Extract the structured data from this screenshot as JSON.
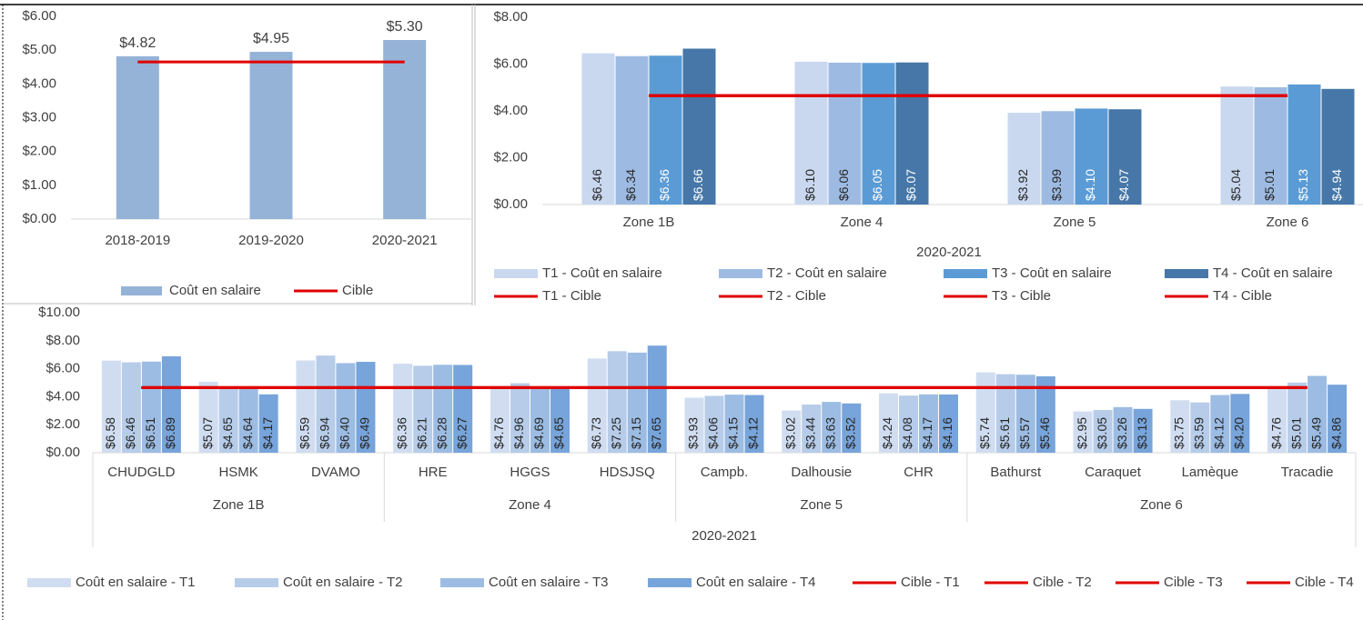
{
  "chart_data": [
    {
      "type": "bar",
      "categories": [
        "2018-2019",
        "2019-2020",
        "2020-2021"
      ],
      "series": [
        {
          "name": "Coût en salaire",
          "type": "bar",
          "color": "#95b3d7",
          "values": [
            4.82,
            4.95,
            5.3
          ],
          "value_labels": [
            "$4.82",
            "$4.95",
            "$5.30"
          ]
        },
        {
          "name": "Cible",
          "type": "line",
          "color": "#e00000",
          "values": [
            4.65,
            4.65,
            4.65
          ]
        }
      ],
      "ylim": [
        0,
        6
      ],
      "yticks": [
        {
          "value": 0,
          "label": "$0.00"
        },
        {
          "value": 1,
          "label": "$1.00"
        },
        {
          "value": 2,
          "label": "$2.00"
        },
        {
          "value": 3,
          "label": "$3.00"
        },
        {
          "value": 4,
          "label": "$4.00"
        },
        {
          "value": 5,
          "label": "$5.00"
        },
        {
          "value": 6,
          "label": "$6.00"
        }
      ],
      "grid": false,
      "legend": "bottom"
    },
    {
      "type": "bar",
      "xlabel": "2020-2021",
      "categories": [
        "Zone 1B",
        "Zone 4",
        "Zone 5",
        "Zone 6"
      ],
      "series": [
        {
          "name": "T1 -  Coût en salaire",
          "type": "bar",
          "color": "#c9d8ef",
          "values": [
            6.46,
            6.1,
            3.92,
            5.04
          ],
          "value_labels": [
            "$6.46",
            "$6.10",
            "$3.92",
            "$5.04"
          ]
        },
        {
          "name": "T2 -  Coût en salaire",
          "type": "bar",
          "color": "#9dbbe2",
          "values": [
            6.34,
            6.06,
            3.99,
            5.01
          ],
          "value_labels": [
            "$6.34",
            "$6.06",
            "$3.99",
            "$5.01"
          ]
        },
        {
          "name": "T3 -  Coût en salaire",
          "type": "bar",
          "color": "#5b9bd5",
          "values": [
            6.36,
            6.05,
            4.1,
            5.13
          ],
          "value_labels": [
            "$6.36",
            "$6.05",
            "$4.10",
            "$5.13"
          ]
        },
        {
          "name": "T4 -  Coût en salaire",
          "type": "bar",
          "color": "#4677a8",
          "values": [
            6.66,
            6.07,
            4.07,
            4.94
          ],
          "value_labels": [
            "$6.66",
            "$6.07",
            "$4.07",
            "$4.94"
          ]
        },
        {
          "name": "T1 -  Cible",
          "type": "line",
          "color": "#e00000",
          "values": [
            4.65,
            4.65,
            4.65,
            4.65
          ]
        },
        {
          "name": "T2 -  Cible",
          "type": "line",
          "color": "#e00000",
          "values": [
            4.65,
            4.65,
            4.65,
            4.65
          ]
        },
        {
          "name": "T3 -  Cible",
          "type": "line",
          "color": "#e00000",
          "values": [
            4.65,
            4.65,
            4.65,
            4.65
          ]
        },
        {
          "name": "T4 -  Cible",
          "type": "line",
          "color": "#e00000",
          "values": [
            4.65,
            4.65,
            4.65,
            4.65
          ]
        }
      ],
      "ylim": [
        0,
        8
      ],
      "yticks": [
        {
          "value": 0,
          "label": "$0.00"
        },
        {
          "value": 2,
          "label": "$2.00"
        },
        {
          "value": 4,
          "label": "$4.00"
        },
        {
          "value": 6,
          "label": "$6.00"
        },
        {
          "value": 8,
          "label": "$8.00"
        }
      ],
      "grid": false,
      "legend": "bottom"
    },
    {
      "type": "bar",
      "xlabel": "2020-2021",
      "category_groups": [
        {
          "label": "Zone 1B",
          "categories": [
            "CHUDGLD",
            "HSMK",
            "DVAMO"
          ]
        },
        {
          "label": "Zone 4",
          "categories": [
            "HRE",
            "HGGS",
            "HDSJSQ"
          ]
        },
        {
          "label": "Zone 5",
          "categories": [
            "Campb.",
            "Dalhousie",
            "CHR"
          ]
        },
        {
          "label": "Zone 6",
          "categories": [
            "Bathurst",
            "Caraquet",
            "Lamèque",
            "Tracadie"
          ]
        }
      ],
      "series": [
        {
          "name": "Coût en salaire - T1",
          "type": "bar",
          "color": "#d0ddf1",
          "values": [
            6.58,
            5.07,
            6.59,
            6.36,
            4.76,
            6.73,
            3.93,
            3.02,
            4.24,
            5.74,
            2.95,
            3.75,
            4.76
          ],
          "value_labels": [
            "$6.58",
            "$5.07",
            "$6.59",
            "$6.36",
            "$4.76",
            "$6.73",
            "$3.93",
            "$3.02",
            "$4.24",
            "$5.74",
            "$2.95",
            "$3.75",
            "$4.76"
          ]
        },
        {
          "name": "Coût en salaire - T2",
          "type": "bar",
          "color": "#b6cce9",
          "values": [
            6.46,
            4.65,
            6.94,
            6.21,
            4.96,
            7.25,
            4.06,
            3.44,
            4.08,
            5.61,
            3.05,
            3.59,
            5.01
          ],
          "value_labels": [
            "$6.46",
            "$4.65",
            "$6.94",
            "$6.21",
            "$4.96",
            "$7.25",
            "$4.06",
            "$3.44",
            "$4.08",
            "$5.61",
            "$3.05",
            "$3.59",
            "$5.01"
          ]
        },
        {
          "name": "Coût en salaire - T3",
          "type": "bar",
          "color": "#9cbce3",
          "values": [
            6.51,
            4.64,
            6.4,
            6.28,
            4.69,
            7.15,
            4.15,
            3.63,
            4.17,
            5.57,
            3.26,
            4.12,
            5.49
          ],
          "value_labels": [
            "$6.51",
            "$4.64",
            "$6.40",
            "$6.28",
            "$4.69",
            "$7.15",
            "$4.15",
            "$3.63",
            "$4.17",
            "$5.57",
            "$3.26",
            "$4.12",
            "$5.49"
          ]
        },
        {
          "name": "Coût en salaire - T4",
          "type": "bar",
          "color": "#77a4da",
          "values": [
            6.89,
            4.17,
            6.49,
            6.27,
            4.65,
            7.65,
            4.12,
            3.52,
            4.16,
            5.46,
            3.13,
            4.2,
            4.86
          ],
          "value_labels": [
            "$6.89",
            "$4.17",
            "$6.49",
            "$6.27",
            "$4.65",
            "$7.65",
            "$4.12",
            "$3.52",
            "$4.16",
            "$5.46",
            "$3.13",
            "$4.20",
            "$4.86"
          ]
        },
        {
          "name": "Cible - T1",
          "type": "line",
          "color": "#e00000",
          "values": [
            4.65,
            4.65,
            4.65,
            4.65,
            4.65,
            4.65,
            4.65,
            4.65,
            4.65,
            4.65,
            4.65,
            4.65,
            4.65
          ]
        },
        {
          "name": "Cible - T2",
          "type": "line",
          "color": "#e00000",
          "values": [
            4.65,
            4.65,
            4.65,
            4.65,
            4.65,
            4.65,
            4.65,
            4.65,
            4.65,
            4.65,
            4.65,
            4.65,
            4.65
          ]
        },
        {
          "name": "Cible - T3",
          "type": "line",
          "color": "#e00000",
          "values": [
            4.65,
            4.65,
            4.65,
            4.65,
            4.65,
            4.65,
            4.65,
            4.65,
            4.65,
            4.65,
            4.65,
            4.65,
            4.65
          ]
        },
        {
          "name": "Cible - T4",
          "type": "line",
          "color": "#e00000",
          "values": [
            4.65,
            4.65,
            4.65,
            4.65,
            4.65,
            4.65,
            4.65,
            4.65,
            4.65,
            4.65,
            4.65,
            4.65,
            4.65
          ]
        }
      ],
      "ylim": [
        0,
        10
      ],
      "yticks": [
        {
          "value": 0,
          "label": "$0.00"
        },
        {
          "value": 2,
          "label": "$2.00"
        },
        {
          "value": 4,
          "label": "$4.00"
        },
        {
          "value": 6,
          "label": "$6.00"
        },
        {
          "value": 8,
          "label": "$8.00"
        },
        {
          "value": 10,
          "label": "$10.00"
        }
      ],
      "grid": false,
      "legend": "bottom"
    }
  ]
}
